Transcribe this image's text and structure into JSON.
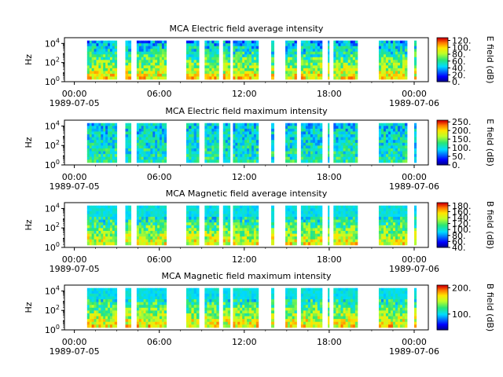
{
  "chart_data": [
    {
      "type": "heatmap",
      "title": "MCA  Electric field average intensity",
      "ylabel": "Hz",
      "yticks": [
        "10^0",
        "10^2",
        "10^4"
      ],
      "xticks": [
        "00:00",
        "06:00",
        "12:00",
        "18:00",
        "00:00"
      ],
      "xdates": [
        "1989-07-05",
        "1989-07-06"
      ],
      "x_range_hours": [
        -0.7,
        25.0
      ],
      "y_range_log10": [
        0,
        4.6
      ],
      "colorbar": {
        "label": "E field (dB)",
        "range": [
          0,
          128
        ],
        "ticks": [
          "0.",
          "20.",
          "40.",
          "60.",
          "80.",
          "100.",
          "120."
        ]
      },
      "low_y_log10": 0.25,
      "high_y_log10": 4.3,
      "data_intervals_hours": [
        [
          0.9,
          3.0
        ],
        [
          3.6,
          4.0
        ],
        [
          4.4,
          6.5
        ],
        [
          7.9,
          8.8
        ],
        [
          9.2,
          10.2
        ],
        [
          10.5,
          11.0
        ],
        [
          11.2,
          13.0
        ],
        [
          13.9,
          14.1
        ],
        [
          14.9,
          15.7
        ],
        [
          16.0,
          17.5
        ],
        [
          17.9,
          18.0
        ],
        [
          18.3,
          20.0
        ],
        [
          21.5,
          23.5
        ],
        [
          24.0,
          24.15
        ]
      ],
      "palette_bias": 0.55
    },
    {
      "type": "heatmap",
      "title": "MCA  Electric field maximum intensity",
      "ylabel": "Hz",
      "yticks": [
        "10^0",
        "10^2",
        "10^4"
      ],
      "xticks": [
        "00:00",
        "06:00",
        "12:00",
        "18:00",
        "00:00"
      ],
      "xdates": [
        "1989-07-05",
        "1989-07-06"
      ],
      "x_range_hours": [
        -0.7,
        25.0
      ],
      "y_range_log10": [
        0,
        4.6
      ],
      "colorbar": {
        "label": "E field (dB)",
        "range": [
          0,
          260
        ],
        "ticks": [
          "0.",
          "50.",
          "100.",
          "150.",
          "200.",
          "250."
        ]
      },
      "low_y_log10": 0.25,
      "high_y_log10": 4.3,
      "data_intervals_hours": [
        [
          0.9,
          3.0
        ],
        [
          3.6,
          4.0
        ],
        [
          4.4,
          6.5
        ],
        [
          7.9,
          8.8
        ],
        [
          9.2,
          10.2
        ],
        [
          10.5,
          11.0
        ],
        [
          11.2,
          13.0
        ],
        [
          13.9,
          14.1
        ],
        [
          14.9,
          15.7
        ],
        [
          16.0,
          17.5
        ],
        [
          17.9,
          18.0
        ],
        [
          18.3,
          20.0
        ],
        [
          21.5,
          23.5
        ],
        [
          24.0,
          24.15
        ]
      ],
      "palette_bias": 0.4
    },
    {
      "type": "heatmap",
      "title": "MCA  Magnetic field average intensity",
      "ylabel": "Hz",
      "yticks": [
        "10^0",
        "10^2",
        "10^4"
      ],
      "xticks": [
        "00:00",
        "06:00",
        "12:00",
        "18:00",
        "00:00"
      ],
      "xdates": [
        "1989-07-05",
        "1989-07-06"
      ],
      "x_range_hours": [
        -0.7,
        25.0
      ],
      "y_range_log10": [
        0,
        4.6
      ],
      "colorbar": {
        "label": "B field (dB)",
        "range": [
          40,
          190
        ],
        "ticks": [
          "40.",
          "60.",
          "80.",
          "100.",
          "120.",
          "140.",
          "160.",
          "180."
        ]
      },
      "low_y_log10": 0.25,
      "high_y_log10": 4.3,
      "data_intervals_hours": [
        [
          0.9,
          3.0
        ],
        [
          3.6,
          4.0
        ],
        [
          4.4,
          6.5
        ],
        [
          7.9,
          8.8
        ],
        [
          9.2,
          10.2
        ],
        [
          10.5,
          11.0
        ],
        [
          11.2,
          13.0
        ],
        [
          13.9,
          14.1
        ],
        [
          14.9,
          15.7
        ],
        [
          16.0,
          17.5
        ],
        [
          17.9,
          18.0
        ],
        [
          18.3,
          20.0
        ],
        [
          21.5,
          23.5
        ],
        [
          24.0,
          24.15
        ]
      ],
      "palette_bias": 0.5
    },
    {
      "type": "heatmap",
      "title": "MCA  Magnetic field maximum intensity",
      "ylabel": "Hz",
      "yticks": [
        "10^0",
        "10^2",
        "10^4"
      ],
      "xticks": [
        "00:00",
        "06:00",
        "12:00",
        "18:00",
        "00:00"
      ],
      "xdates": [
        "1989-07-05",
        "1989-07-06"
      ],
      "x_range_hours": [
        -0.7,
        25.0
      ],
      "y_range_log10": [
        0,
        4.6
      ],
      "colorbar": {
        "label": "B field (dB)",
        "range": [
          40,
          210
        ],
        "ticks": [
          "100.",
          "200."
        ]
      },
      "low_y_log10": 0.25,
      "high_y_log10": 4.3,
      "data_intervals_hours": [
        [
          0.9,
          3.0
        ],
        [
          3.6,
          4.0
        ],
        [
          4.4,
          6.5
        ],
        [
          7.9,
          8.8
        ],
        [
          9.2,
          10.2
        ],
        [
          10.5,
          11.0
        ],
        [
          11.2,
          13.0
        ],
        [
          13.9,
          14.1
        ],
        [
          14.9,
          15.7
        ],
        [
          16.0,
          17.5
        ],
        [
          17.9,
          18.0
        ],
        [
          18.3,
          20.0
        ],
        [
          21.5,
          23.5
        ],
        [
          24.0,
          24.15
        ]
      ],
      "palette_bias": 0.55
    }
  ]
}
